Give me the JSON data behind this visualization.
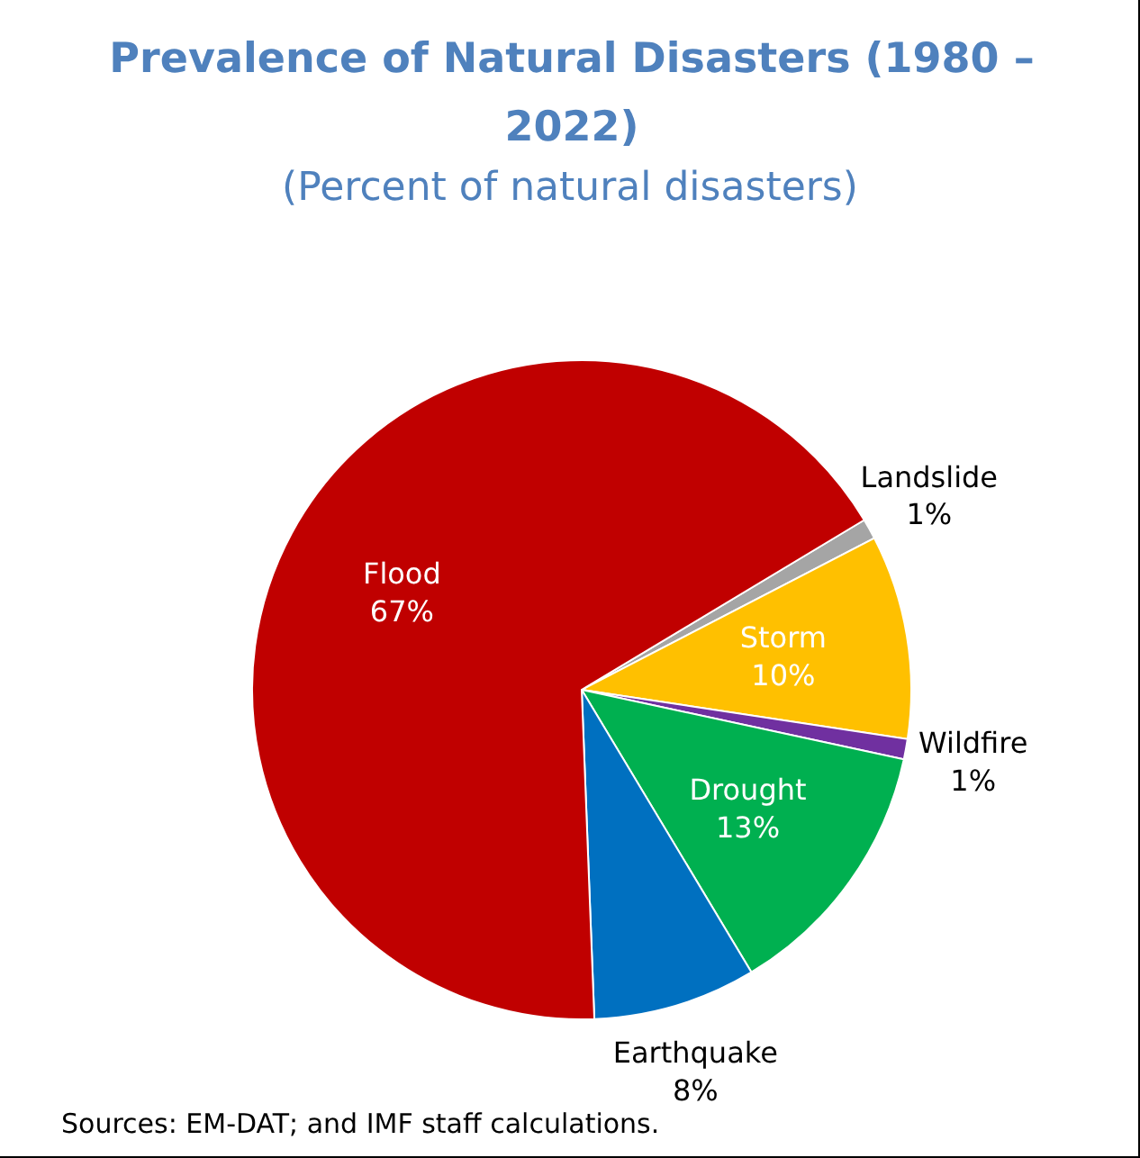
{
  "chart_data": {
    "type": "pie",
    "title": "Prevalence of Natural Disasters (1980 – 2022)",
    "subtitle": "(Percent of natural disasters)",
    "categories": [
      "Landslide",
      "Storm",
      "Wildfire",
      "Drought",
      "Earthquake",
      "Flood"
    ],
    "values": [
      1,
      10,
      1,
      13,
      8,
      67
    ],
    "colors": [
      "#a5a5a5",
      "#ffc000",
      "#7030a0",
      "#00b050",
      "#0070c0",
      "#c00000"
    ],
    "value_labels": [
      "1%",
      "10%",
      "1%",
      "13%",
      "8%",
      "67%"
    ],
    "annotations": [
      "Sources: EM-DAT; and IMF staff calculations."
    ]
  }
}
